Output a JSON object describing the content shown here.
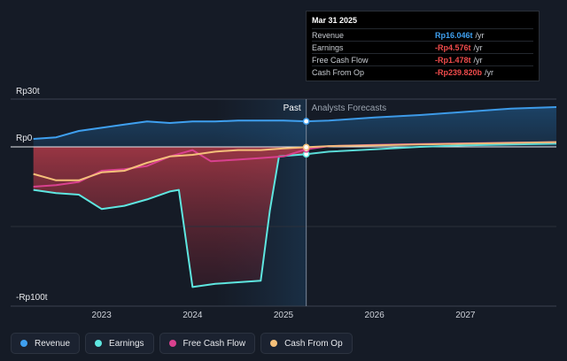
{
  "chart_data": {
    "type": "line",
    "y_tick_labels": [
      "Rp30t",
      "Rp0",
      "-Rp100t"
    ],
    "x_tick_labels": [
      "2023",
      "2024",
      "2025",
      "2026",
      "2027"
    ],
    "x_ticks": [
      2023,
      2024,
      2025,
      2026,
      2027
    ],
    "xlim": [
      2022.0,
      2028.0
    ],
    "ylim": [
      -100,
      30
    ],
    "divider_x": 2025.25,
    "past_label": "Past",
    "forecast_label": "Analysts Forecasts",
    "series": [
      {
        "name": "Revenue",
        "color": "#3fa0f0",
        "points": [
          [
            2022.25,
            5
          ],
          [
            2022.5,
            6
          ],
          [
            2022.75,
            10
          ],
          [
            2023.0,
            12
          ],
          [
            2023.25,
            14
          ],
          [
            2023.5,
            16
          ],
          [
            2023.75,
            15
          ],
          [
            2024.0,
            16
          ],
          [
            2024.25,
            16
          ],
          [
            2024.5,
            16.5
          ],
          [
            2024.75,
            16.5
          ],
          [
            2025.0,
            16.5
          ],
          [
            2025.25,
            16.05
          ]
        ],
        "forecast": [
          [
            2025.25,
            16.05
          ],
          [
            2025.5,
            16.5
          ],
          [
            2026.0,
            18.5
          ],
          [
            2026.5,
            20
          ],
          [
            2027.0,
            22
          ],
          [
            2027.5,
            24
          ],
          [
            2028.0,
            25
          ]
        ]
      },
      {
        "name": "Earnings",
        "color": "#5ee6e0",
        "points": [
          [
            2022.25,
            -27
          ],
          [
            2022.5,
            -29
          ],
          [
            2022.75,
            -30
          ],
          [
            2023.0,
            -39
          ],
          [
            2023.25,
            -37
          ],
          [
            2023.5,
            -33
          ],
          [
            2023.75,
            -28
          ],
          [
            2023.85,
            -27
          ],
          [
            2024.0,
            -88
          ],
          [
            2024.25,
            -86
          ],
          [
            2024.5,
            -85
          ],
          [
            2024.75,
            -84
          ],
          [
            2024.85,
            -40
          ],
          [
            2024.95,
            -6
          ],
          [
            2025.25,
            -4.58
          ]
        ],
        "forecast": [
          [
            2025.25,
            -4.58
          ],
          [
            2025.5,
            -3
          ],
          [
            2026.0,
            -1.5
          ],
          [
            2026.5,
            0
          ],
          [
            2027.0,
            1
          ],
          [
            2027.5,
            1.5
          ],
          [
            2028.0,
            2
          ]
        ]
      },
      {
        "name": "Free Cash Flow",
        "color": "#d9418f",
        "points": [
          [
            2022.25,
            -25
          ],
          [
            2022.5,
            -24
          ],
          [
            2022.75,
            -22
          ],
          [
            2023.0,
            -15
          ],
          [
            2023.25,
            -14
          ],
          [
            2023.5,
            -12
          ],
          [
            2023.75,
            -6
          ],
          [
            2024.0,
            -2
          ],
          [
            2024.2,
            -9
          ],
          [
            2024.5,
            -8
          ],
          [
            2024.75,
            -7
          ],
          [
            2025.0,
            -6
          ],
          [
            2025.25,
            -1.48
          ]
        ],
        "forecast": [
          [
            2025.25,
            -1.48
          ],
          [
            2025.5,
            0.5
          ],
          [
            2026.0,
            1.2
          ],
          [
            2026.5,
            1.8
          ],
          [
            2027.0,
            2.2
          ],
          [
            2027.5,
            2.6
          ],
          [
            2028.0,
            3
          ]
        ]
      },
      {
        "name": "Cash From Op",
        "color": "#f5c07a",
        "points": [
          [
            2022.25,
            -17
          ],
          [
            2022.5,
            -21
          ],
          [
            2022.75,
            -21
          ],
          [
            2023.0,
            -16
          ],
          [
            2023.25,
            -15
          ],
          [
            2023.5,
            -10
          ],
          [
            2023.75,
            -6
          ],
          [
            2024.0,
            -5
          ],
          [
            2024.25,
            -3
          ],
          [
            2024.5,
            -2
          ],
          [
            2024.75,
            -2
          ],
          [
            2025.0,
            -1
          ],
          [
            2025.25,
            -0.24
          ]
        ],
        "forecast": [
          [
            2025.25,
            -0.24
          ],
          [
            2025.5,
            0.5
          ],
          [
            2026.0,
            1
          ],
          [
            2026.5,
            1.5
          ],
          [
            2027.0,
            2
          ],
          [
            2027.5,
            2.5
          ],
          [
            2028.0,
            3
          ]
        ]
      }
    ]
  },
  "tooltip": {
    "title": "Mar 31 2025",
    "rows": [
      {
        "label": "Revenue",
        "value": "Rp16.046t",
        "unit": "/yr",
        "color": "#3fa0f0"
      },
      {
        "label": "Earnings",
        "value": "-Rp4.576t",
        "unit": "/yr",
        "color": "#ef4b4b"
      },
      {
        "label": "Free Cash Flow",
        "value": "-Rp1.478t",
        "unit": "/yr",
        "color": "#ef4b4b"
      },
      {
        "label": "Cash From Op",
        "value": "-Rp239.820b",
        "unit": "/yr",
        "color": "#ef4b4b"
      }
    ]
  },
  "legend": [
    {
      "label": "Revenue",
      "color": "#3fa0f0"
    },
    {
      "label": "Earnings",
      "color": "#5ee6e0"
    },
    {
      "label": "Free Cash Flow",
      "color": "#d9418f"
    },
    {
      "label": "Cash From Op",
      "color": "#f5c07a"
    }
  ]
}
